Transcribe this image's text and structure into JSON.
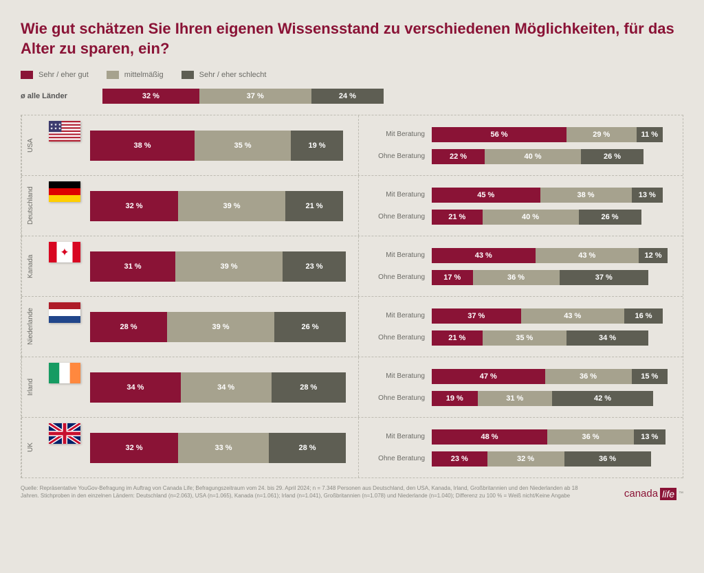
{
  "title": "Wie gut schätzen Sie Ihren eigenen Wissensstand zu verschiedenen Möglichkeiten, für das Alter zu sparen, ein?",
  "colors": {
    "good": "#8a1336",
    "mid": "#a6a28e",
    "bad": "#5e5e53",
    "background": "#e8e5df",
    "text": "#6b6b66"
  },
  "legend": [
    {
      "label": "Sehr / eher gut",
      "color": "#8a1336"
    },
    {
      "label": "mittelmäßig",
      "color": "#a6a28e"
    },
    {
      "label": "Sehr / eher schlecht",
      "color": "#5e5e53"
    }
  ],
  "average": {
    "label": "ø alle Länder",
    "values": [
      32,
      37,
      24
    ]
  },
  "sub_labels": {
    "with": "Mit Beratung",
    "without": "Ohne Beratung"
  },
  "bar_scale_main": 4.0,
  "bar_scale_sub": 3.5,
  "bar_scale_avg": 4.4,
  "countries": [
    {
      "name": "USA",
      "flag": {
        "type": "usa"
      },
      "main": [
        38,
        35,
        19
      ],
      "with": [
        56,
        29,
        11
      ],
      "without": [
        22,
        40,
        26
      ]
    },
    {
      "name": "Deutschland",
      "flag": {
        "type": "de"
      },
      "main": [
        32,
        39,
        21
      ],
      "with": [
        45,
        38,
        13
      ],
      "without": [
        21,
        40,
        26
      ]
    },
    {
      "name": "Kanada",
      "flag": {
        "type": "ca"
      },
      "main": [
        31,
        39,
        23
      ],
      "with": [
        43,
        43,
        12
      ],
      "without": [
        17,
        36,
        37
      ]
    },
    {
      "name": "Niederlande",
      "flag": {
        "type": "nl"
      },
      "main": [
        28,
        39,
        26
      ],
      "with": [
        37,
        43,
        16
      ],
      "without": [
        21,
        35,
        34
      ]
    },
    {
      "name": "Irland",
      "flag": {
        "type": "ie"
      },
      "main": [
        34,
        34,
        28
      ],
      "with": [
        47,
        36,
        15
      ],
      "without": [
        19,
        31,
        42
      ]
    },
    {
      "name": "UK",
      "flag": {
        "type": "uk"
      },
      "main": [
        32,
        33,
        28
      ],
      "with": [
        48,
        36,
        13
      ],
      "without": [
        23,
        32,
        36
      ]
    }
  ],
  "source": "Quelle: Repräsentative YouGov-Befragung im Auftrag von Canada Life; Befragungszeitraum vom 24. bis 29. April 2024; n = 7.348 Personen aus Deutschland, den USA, Kanada, Irland, Großbritannien und den Niederlanden ab 18 Jahren. Stichproben in den einzelnen Ländern: Deutschland (n=2.063), USA (n=1.065), Kanada (n=1.061); Irland (n=1.041), Großbritannien (n=1.078) und Niederlande (n=1.040); Differenz zu 100 % = Weiß nicht/Keine Angabe",
  "brand": {
    "word1": "canada",
    "word2": "life"
  }
}
